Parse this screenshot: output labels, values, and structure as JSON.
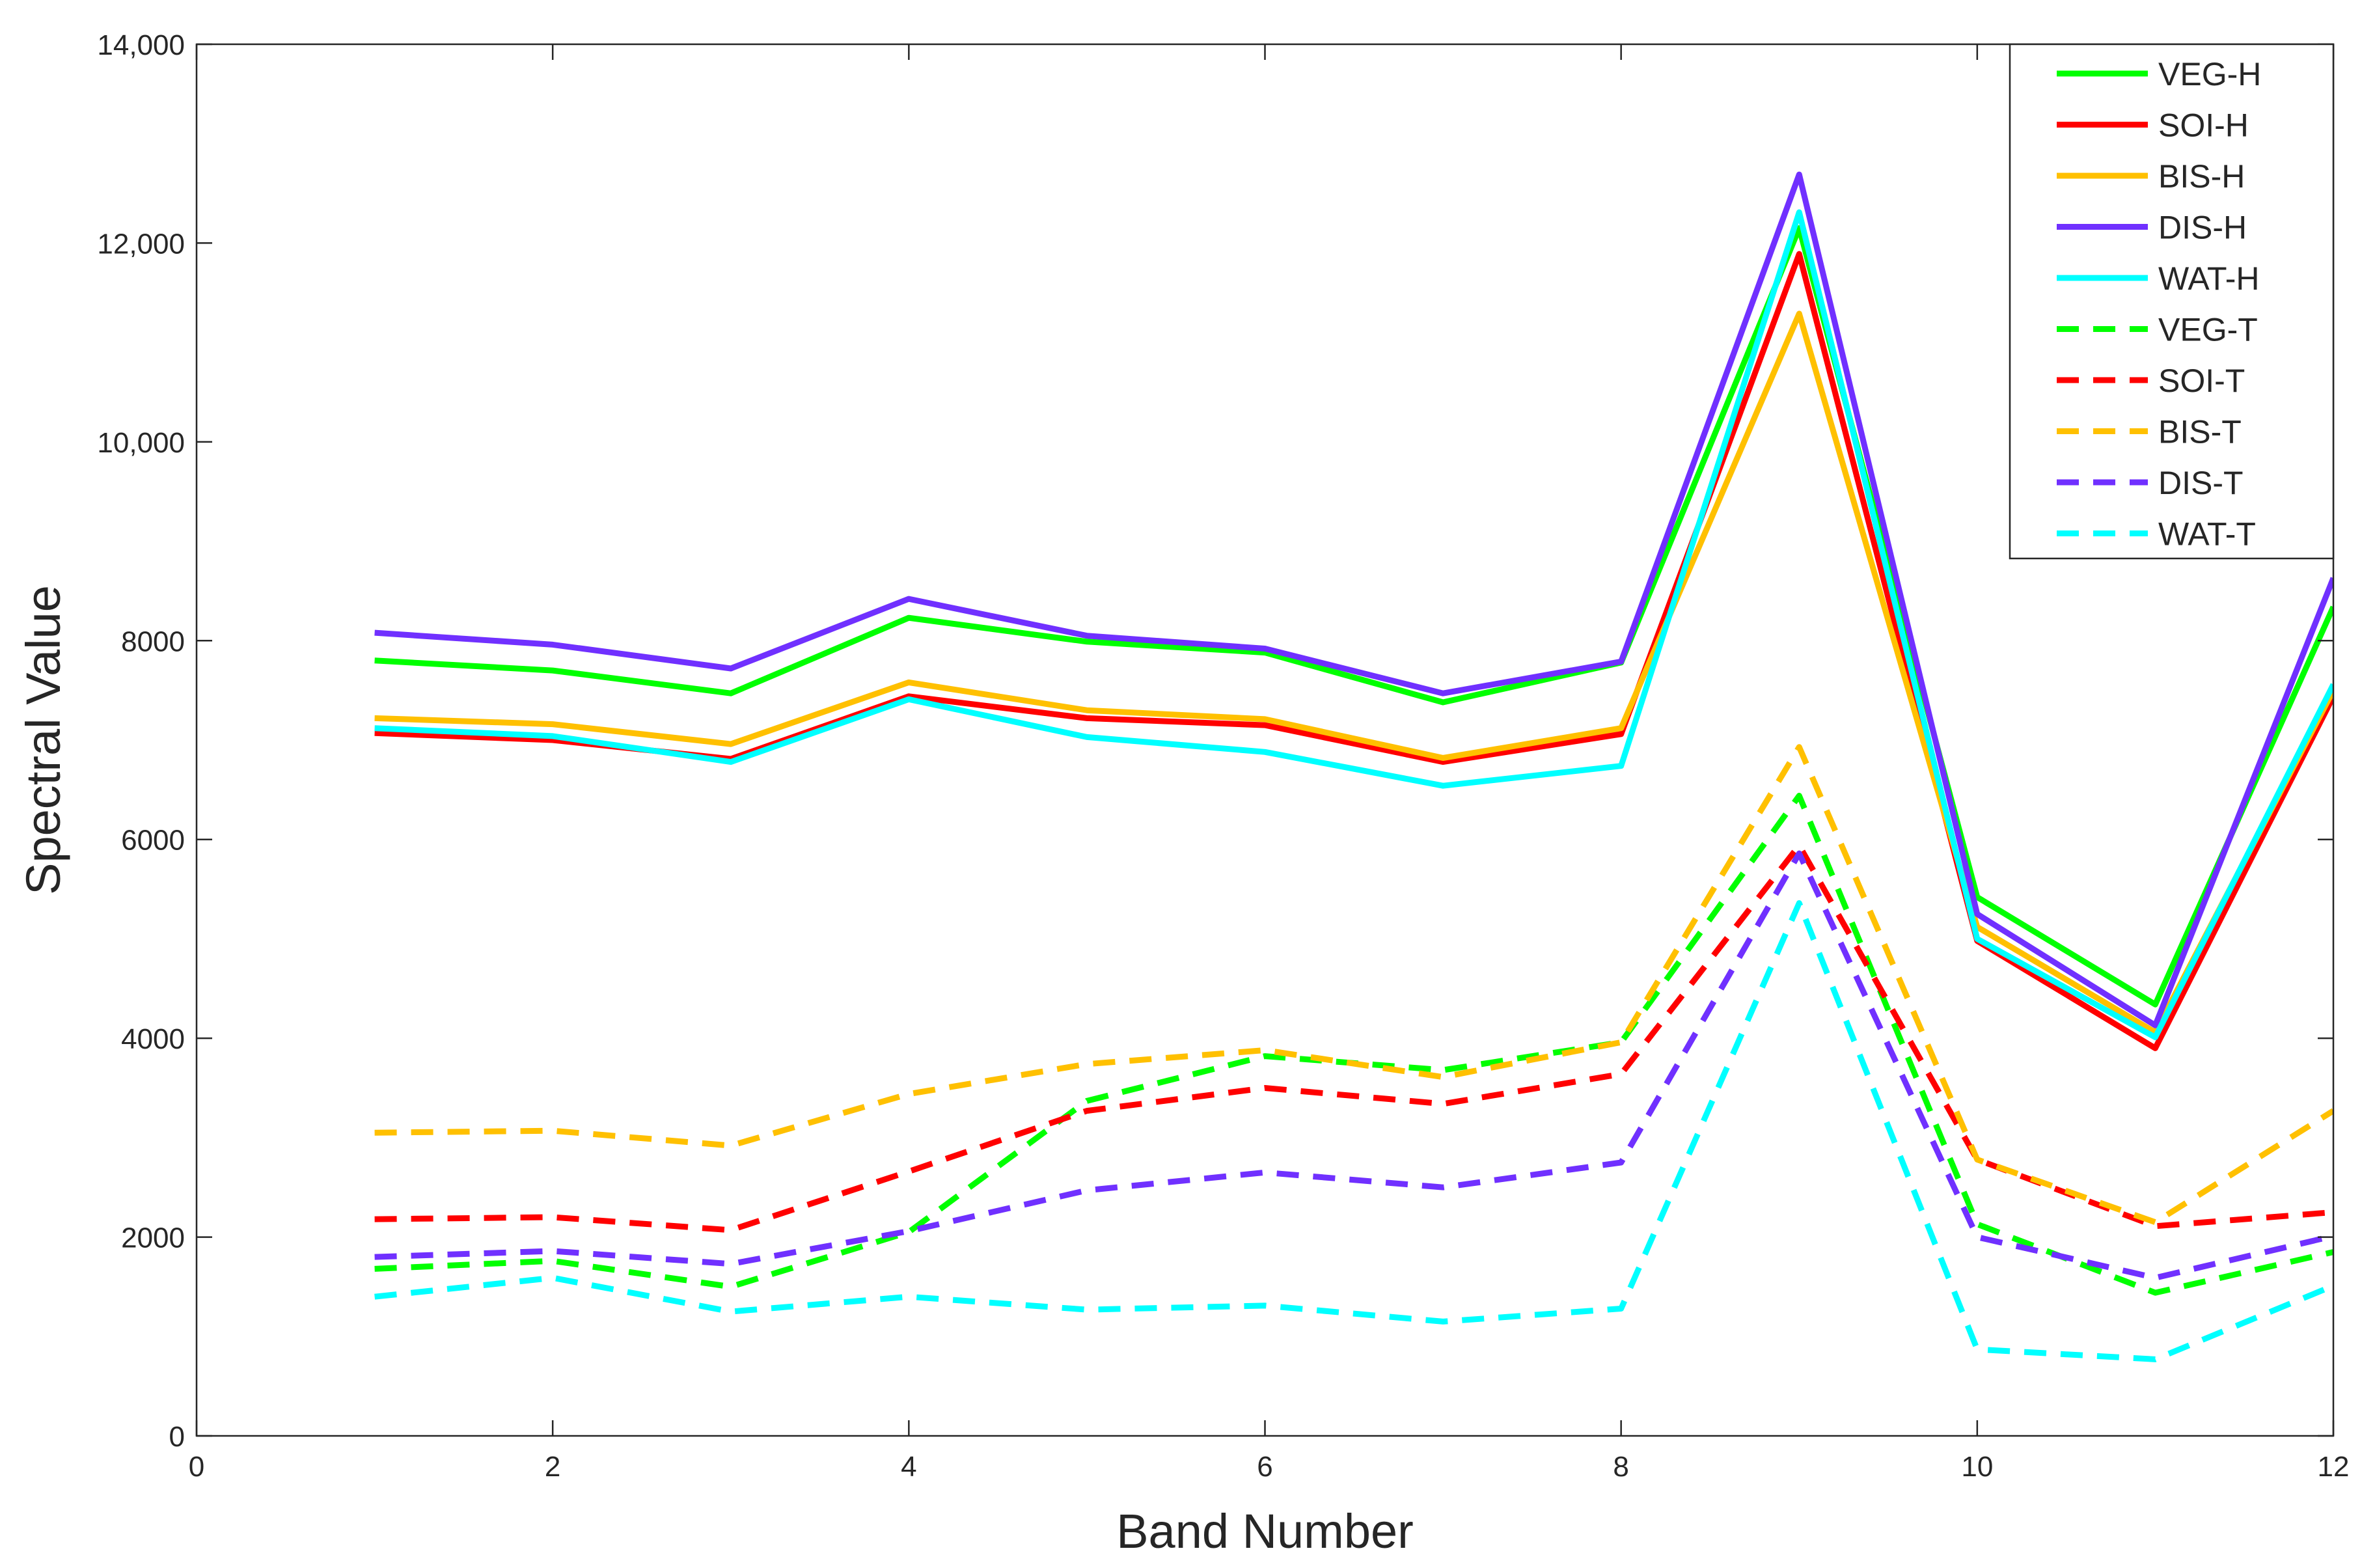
{
  "chart_data": {
    "type": "line",
    "xlabel": "Band Number",
    "ylabel": "Spectral Value",
    "xlim": [
      0,
      12
    ],
    "ylim": [
      0,
      14000
    ],
    "x_ticks": [
      "0",
      "2",
      "4",
      "6",
      "8",
      "10",
      "12"
    ],
    "y_ticks": [
      "0",
      "2000",
      "4000",
      "6000",
      "8000",
      "10,000",
      "12,000",
      "14,000"
    ],
    "grid": false,
    "legend_position": "top-right",
    "x": [
      1,
      2,
      3,
      4,
      5,
      6,
      7,
      8,
      9,
      10,
      11,
      12
    ],
    "series": [
      {
        "name": "VEG-H",
        "style": "solid",
        "color": "#00ff00",
        "values": [
          7800,
          7700,
          7470,
          8230,
          7990,
          7880,
          7380,
          7780,
          12150,
          5420,
          4340,
          8340
        ]
      },
      {
        "name": "SOI-H",
        "style": "solid",
        "color": "#ff0000",
        "values": [
          7070,
          7000,
          6810,
          7440,
          7220,
          7150,
          6780,
          7060,
          11890,
          4980,
          3900,
          7440
        ]
      },
      {
        "name": "BIS-H",
        "style": "solid",
        "color": "#ffc000",
        "values": [
          7220,
          7160,
          6960,
          7580,
          7300,
          7210,
          6820,
          7120,
          11290,
          5120,
          4060,
          7500
        ]
      },
      {
        "name": "DIS-H",
        "style": "solid",
        "color": "#7030ff",
        "values": [
          8080,
          7960,
          7720,
          8420,
          8050,
          7920,
          7470,
          7790,
          12690,
          5250,
          4130,
          8630
        ]
      },
      {
        "name": "WAT-H",
        "style": "solid",
        "color": "#00ffff",
        "values": [
          7120,
          7040,
          6780,
          7410,
          7030,
          6880,
          6540,
          6740,
          12310,
          5000,
          4010,
          7560
        ]
      },
      {
        "name": "VEG-T",
        "style": "dashed",
        "color": "#00ff00",
        "values": [
          1680,
          1760,
          1500,
          2050,
          3370,
          3820,
          3680,
          3960,
          6440,
          2130,
          1440,
          1850
        ]
      },
      {
        "name": "SOI-T",
        "style": "dashed",
        "color": "#ff0000",
        "values": [
          2180,
          2200,
          2070,
          2660,
          3270,
          3500,
          3340,
          3640,
          5940,
          2780,
          2110,
          2250
        ]
      },
      {
        "name": "BIS-T",
        "style": "dashed",
        "color": "#ffc000",
        "values": [
          3050,
          3070,
          2920,
          3440,
          3740,
          3880,
          3610,
          3960,
          6930,
          2780,
          2150,
          3270
        ]
      },
      {
        "name": "DIS-T",
        "style": "dashed",
        "color": "#7030ff",
        "values": [
          1800,
          1860,
          1730,
          2060,
          2470,
          2650,
          2500,
          2750,
          5860,
          2000,
          1590,
          2010
        ]
      },
      {
        "name": "WAT-T",
        "style": "dashed",
        "color": "#00ffff",
        "values": [
          1400,
          1590,
          1250,
          1400,
          1270,
          1310,
          1150,
          1280,
          5360,
          870,
          770,
          1510
        ]
      }
    ]
  }
}
